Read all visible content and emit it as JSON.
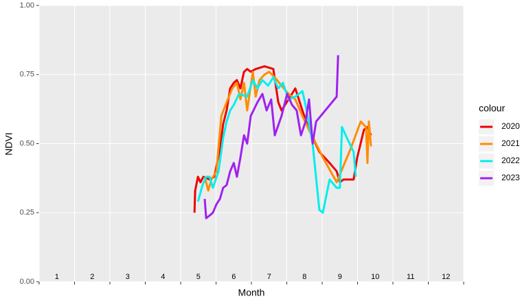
{
  "chart_data": {
    "type": "line",
    "x_label": "Month",
    "y_label": "NDVI",
    "legend_title": "colour",
    "legend_position": "right",
    "xlim": [
      1,
      13
    ],
    "xgrid": [
      1,
      2,
      3,
      4,
      5,
      6,
      7,
      8,
      9,
      10,
      11,
      12,
      13
    ],
    "month_labels": [
      {
        "value": 1.5,
        "label": "1"
      },
      {
        "value": 2.5,
        "label": "2"
      },
      {
        "value": 3.5,
        "label": "3"
      },
      {
        "value": 4.5,
        "label": "4"
      },
      {
        "value": 5.5,
        "label": "5"
      },
      {
        "value": 6.5,
        "label": "6"
      },
      {
        "value": 7.5,
        "label": "7"
      },
      {
        "value": 8.5,
        "label": "8"
      },
      {
        "value": 9.5,
        "label": "9"
      },
      {
        "value": 10.5,
        "label": "10"
      },
      {
        "value": 11.5,
        "label": "11"
      },
      {
        "value": 12.5,
        "label": "12"
      }
    ],
    "ylim": [
      0,
      1
    ],
    "yticks": [
      {
        "value": 0,
        "label": "0.00"
      },
      {
        "value": 0.25,
        "label": "0.25"
      },
      {
        "value": 0.5,
        "label": "0.50"
      },
      {
        "value": 0.75,
        "label": "0.75"
      },
      {
        "value": 1,
        "label": "1.00"
      }
    ],
    "grid": true,
    "series": [
      {
        "name": "2020",
        "color": "#ee0000",
        "x": [
          5.39,
          5.41,
          5.49,
          5.56,
          5.64,
          5.82,
          5.95,
          6.11,
          6.2,
          6.3,
          6.4,
          6.5,
          6.59,
          6.69,
          6.79,
          6.88,
          6.98,
          7.12,
          7.37,
          7.62,
          7.76,
          7.85,
          8.05,
          8.24,
          8.44,
          8.63,
          8.92,
          9.21,
          9.41,
          9.5,
          9.6,
          9.89,
          9.99,
          10.18,
          10.28,
          10.38
        ],
        "values": [
          0.25,
          0.33,
          0.38,
          0.36,
          0.38,
          0.37,
          0.38,
          0.48,
          0.57,
          0.62,
          0.7,
          0.72,
          0.73,
          0.7,
          0.76,
          0.77,
          0.76,
          0.77,
          0.78,
          0.77,
          0.65,
          0.62,
          0.66,
          0.7,
          0.62,
          0.55,
          0.47,
          0.43,
          0.4,
          0.36,
          0.37,
          0.37,
          0.45,
          0.55,
          0.56,
          0.53
        ]
      },
      {
        "name": "2021",
        "color": "#ff8c00",
        "x": [
          5.68,
          5.78,
          5.87,
          6.01,
          6.15,
          6.3,
          6.46,
          6.59,
          6.69,
          6.79,
          6.88,
          7.04,
          7.12,
          7.23,
          7.37,
          7.5,
          7.66,
          7.85,
          8.05,
          8.24,
          8.44,
          8.63,
          9.02,
          9.41,
          9.8,
          10.09,
          10.24,
          10.28,
          10.32,
          10.38
        ],
        "values": [
          0.38,
          0.33,
          0.37,
          0.4,
          0.6,
          0.65,
          0.7,
          0.72,
          0.66,
          0.72,
          0.62,
          0.76,
          0.67,
          0.73,
          0.75,
          0.76,
          0.74,
          0.71,
          0.68,
          0.66,
          0.6,
          0.55,
          0.45,
          0.36,
          0.48,
          0.58,
          0.56,
          0.43,
          0.58,
          0.49
        ]
      },
      {
        "name": "2022",
        "color": "#00eeee",
        "x": [
          5.49,
          5.62,
          5.72,
          5.82,
          5.91,
          6.07,
          6.2,
          6.3,
          6.4,
          6.5,
          6.65,
          6.88,
          7.04,
          7.17,
          7.31,
          7.47,
          7.62,
          7.76,
          7.89,
          8.05,
          8.24,
          8.44,
          8.53,
          8.73,
          8.92,
          9.02,
          9.21,
          9.41,
          9.5,
          9.56,
          9.7,
          9.89,
          9.95
        ],
        "values": [
          0.29,
          0.35,
          0.38,
          0.38,
          0.34,
          0.4,
          0.52,
          0.58,
          0.62,
          0.64,
          0.68,
          0.67,
          0.73,
          0.7,
          0.73,
          0.71,
          0.74,
          0.7,
          0.72,
          0.66,
          0.67,
          0.69,
          0.64,
          0.5,
          0.26,
          0.25,
          0.37,
          0.34,
          0.34,
          0.56,
          0.52,
          0.47,
          0.38
        ]
      },
      {
        "name": "2023",
        "color": "#a020f0",
        "x": [
          5.68,
          5.72,
          5.82,
          5.91,
          6.01,
          6.11,
          6.2,
          6.3,
          6.4,
          6.5,
          6.59,
          6.69,
          6.79,
          6.88,
          6.98,
          7.17,
          7.31,
          7.43,
          7.56,
          7.66,
          7.85,
          8.01,
          8.15,
          8.28,
          8.4,
          8.53,
          8.63,
          8.73,
          8.83,
          9.41,
          9.45
        ],
        "values": [
          0.3,
          0.23,
          0.24,
          0.25,
          0.28,
          0.3,
          0.34,
          0.35,
          0.4,
          0.43,
          0.38,
          0.45,
          0.53,
          0.5,
          0.6,
          0.65,
          0.68,
          0.62,
          0.66,
          0.53,
          0.6,
          0.68,
          0.64,
          0.62,
          0.53,
          0.58,
          0.66,
          0.5,
          0.58,
          0.67,
          0.82
        ]
      }
    ]
  }
}
